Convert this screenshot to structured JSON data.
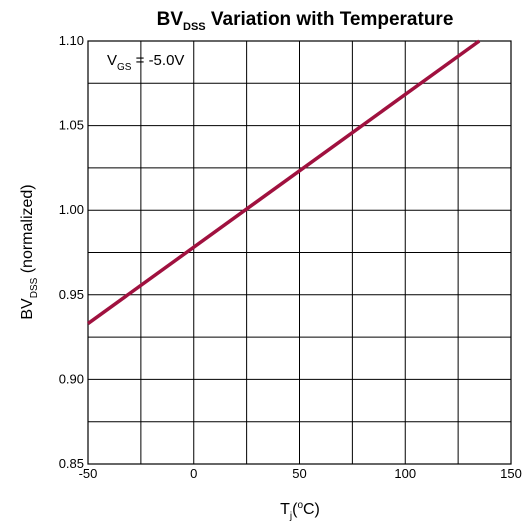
{
  "chart_data": {
    "type": "line",
    "title": {
      "main": "BV",
      "sub": "DSS",
      "rest": " Variation with Temperature"
    },
    "xlabel": {
      "main": "T",
      "sub": "j",
      "rest_before_deg": "(",
      "deg": "o",
      "rest_after_deg": "C)"
    },
    "ylabel": {
      "main": "BV",
      "sub": "DSS",
      "rest": " (normalized)"
    },
    "xlim": [
      -50,
      150
    ],
    "ylim": [
      0.85,
      1.1
    ],
    "xticks": [
      -50,
      0,
      50,
      100,
      150
    ],
    "xtick_labels": [
      "-50",
      "0",
      "50",
      "100",
      "150"
    ],
    "yticks": [
      0.85,
      0.9,
      0.95,
      1.0,
      1.05,
      1.1
    ],
    "ytick_labels": [
      "0.85",
      "0.90",
      "0.95",
      "1.00",
      "1.05",
      "1.10"
    ],
    "grid": true,
    "annotation": {
      "main": "V",
      "sub": "GS",
      "rest": " = -5.0V"
    },
    "series": [
      {
        "color": "#a0113f",
        "x": [
          -50,
          135
        ],
        "y": [
          0.933,
          1.1
        ]
      }
    ]
  }
}
